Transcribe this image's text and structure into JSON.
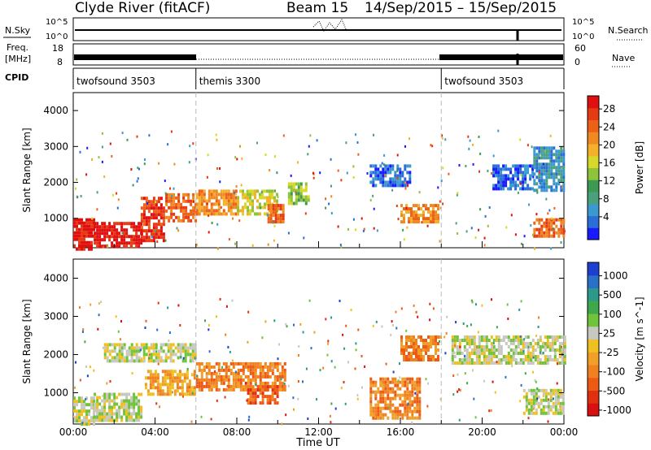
{
  "header": {
    "station": "Clyde River (fitACF)",
    "beam": "Beam 15",
    "date_range": "14/Sep/2015 – 15/Sep/2015"
  },
  "top_panels": {
    "nsky_label": "N.Sky",
    "nsearch_label": "N.Search",
    "noise_tick_hi": "10^5",
    "noise_tick_lo": "10^0",
    "freq_label_line1": "Freq.",
    "freq_label_line2": "[MHz]",
    "freq_tick_hi": "18",
    "freq_tick_lo": "8",
    "nave_label": "Nave",
    "nave_tick_hi": "60",
    "nave_tick_lo": "0",
    "cpid_label": "CPID",
    "cpid_segments": [
      {
        "name": "twofsound 3503",
        "start_h": 0,
        "end_h": 6
      },
      {
        "name": "themis 3300",
        "start_h": 6,
        "end_h": 18
      },
      {
        "name": "twofsound 3503",
        "start_h": 18,
        "end_h": 24
      }
    ]
  },
  "chart_data": [
    {
      "type": "heatmap",
      "title": "Power",
      "xlabel": "Time UT",
      "ylabel": "Slant Range [km]",
      "xlim_hours": [
        0,
        24
      ],
      "ylim_km": [
        180,
        4500
      ],
      "x_ticks": [
        "00:00",
        "04:00",
        "08:00",
        "12:00",
        "16:00",
        "20:00",
        "00:00"
      ],
      "y_ticks": [
        1000,
        2000,
        3000,
        4000
      ],
      "colorbar": {
        "label": "Power [dB]",
        "ticks": [
          "4",
          "8",
          "12",
          "16",
          "20",
          "24",
          "28"
        ],
        "colors": [
          "#1a1aff",
          "#2b6fd6",
          "#3a9ad0",
          "#4aa07a",
          "#3c9a52",
          "#8ec43a",
          "#d8d82a",
          "#f4b02a",
          "#f08a20",
          "#ec6018",
          "#e63a12",
          "#e01010"
        ]
      },
      "regions": [
        {
          "t0": 0.0,
          "t1": 1.0,
          "r0": 180,
          "r1": 1000,
          "level": 11
        },
        {
          "t0": 1.0,
          "t1": 3.3,
          "r0": 180,
          "r1": 900,
          "level": 11
        },
        {
          "t0": 3.3,
          "t1": 4.4,
          "r0": 400,
          "r1": 1600,
          "level": 10
        },
        {
          "t0": 4.5,
          "t1": 6.0,
          "r0": 900,
          "r1": 1700,
          "level": 9
        },
        {
          "t0": 6.0,
          "t1": 8.0,
          "r0": 1100,
          "r1": 1800,
          "level": 8
        },
        {
          "t0": 8.0,
          "t1": 10.0,
          "r0": 1100,
          "r1": 1800,
          "level": 6
        },
        {
          "t0": 9.5,
          "t1": 10.3,
          "r0": 900,
          "r1": 1400,
          "level": 9
        },
        {
          "t0": 10.5,
          "t1": 11.5,
          "r0": 1400,
          "r1": 2000,
          "level": 5
        },
        {
          "t0": 16.0,
          "t1": 17.8,
          "r0": 900,
          "r1": 1400,
          "level": 8
        },
        {
          "t0": 14.5,
          "t1": 16.5,
          "r0": 1900,
          "r1": 2500,
          "level": 1
        },
        {
          "t0": 20.5,
          "t1": 22.5,
          "r0": 1800,
          "r1": 2500,
          "level": 1
        },
        {
          "t0": 22.5,
          "t1": 24.0,
          "r0": 500,
          "r1": 1000,
          "level": 9
        },
        {
          "t0": 22.5,
          "t1": 24.0,
          "r0": 1800,
          "r1": 3000,
          "level": 2
        }
      ]
    },
    {
      "type": "heatmap",
      "title": "Velocity",
      "xlabel": "Time UT",
      "ylabel": "Slant Range [km]",
      "xlim_hours": [
        0,
        24
      ],
      "ylim_km": [
        180,
        4500
      ],
      "x_ticks": [
        "00:00",
        "04:00",
        "08:00",
        "12:00",
        "16:00",
        "20:00",
        "00:00"
      ],
      "y_ticks": [
        1000,
        2000,
        3000,
        4000
      ],
      "colorbar": {
        "label": "Velocity [m s^-1]",
        "ticks": [
          "1000",
          "500",
          "100",
          "25",
          "-25",
          "-100",
          "-500",
          "-1000"
        ],
        "colors": [
          "#1c3fd0",
          "#2a6fc8",
          "#2c9a8a",
          "#3ea84a",
          "#6fc43a",
          "#c8c8c0",
          "#f0c020",
          "#f0a028",
          "#f08020",
          "#ec5a14",
          "#e03010",
          "#d81010"
        ]
      },
      "regions": [
        {
          "t0": 0.0,
          "t1": 1.0,
          "r0": 180,
          "r1": 900,
          "level": 5
        },
        {
          "t0": 1.0,
          "t1": 3.3,
          "r0": 300,
          "r1": 1000,
          "level": 5
        },
        {
          "t0": 3.5,
          "t1": 6.0,
          "r0": 1000,
          "r1": 1600,
          "level": 7
        },
        {
          "t0": 6.0,
          "t1": 10.3,
          "r0": 1100,
          "r1": 1800,
          "level": 8
        },
        {
          "t0": 8.5,
          "t1": 10.0,
          "r0": 700,
          "r1": 1200,
          "level": 9
        },
        {
          "t0": 1.5,
          "t1": 6.0,
          "r0": 1800,
          "r1": 2300,
          "level": 5
        },
        {
          "t0": 14.5,
          "t1": 17.0,
          "r0": 300,
          "r1": 1400,
          "level": 8
        },
        {
          "t0": 16.0,
          "t1": 18.0,
          "r0": 1900,
          "r1": 2500,
          "level": 8
        },
        {
          "t0": 22.0,
          "t1": 24.0,
          "r0": 500,
          "r1": 1100,
          "level": 5
        },
        {
          "t0": 18.5,
          "t1": 24.0,
          "r0": 1800,
          "r1": 2500,
          "level": 5
        }
      ]
    }
  ]
}
